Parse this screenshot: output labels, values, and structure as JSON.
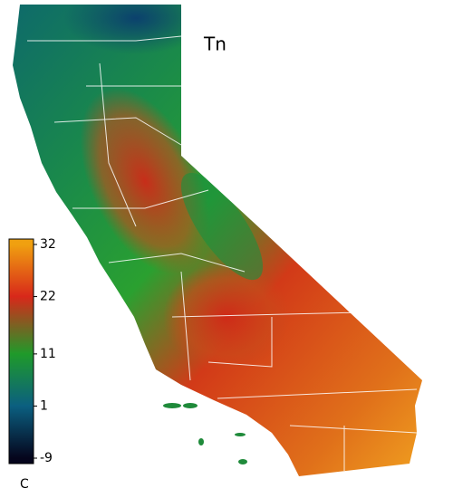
{
  "map": {
    "title": "Tn",
    "colorbar": {
      "unit": "C",
      "lim": [
        -9,
        32
      ],
      "ticks": [
        32,
        22,
        11,
        1,
        -9
      ],
      "colors": [
        "#f0a010",
        "#d8281a",
        "#1f9a2a",
        "#0b5f80",
        "#05051c"
      ]
    }
  }
}
